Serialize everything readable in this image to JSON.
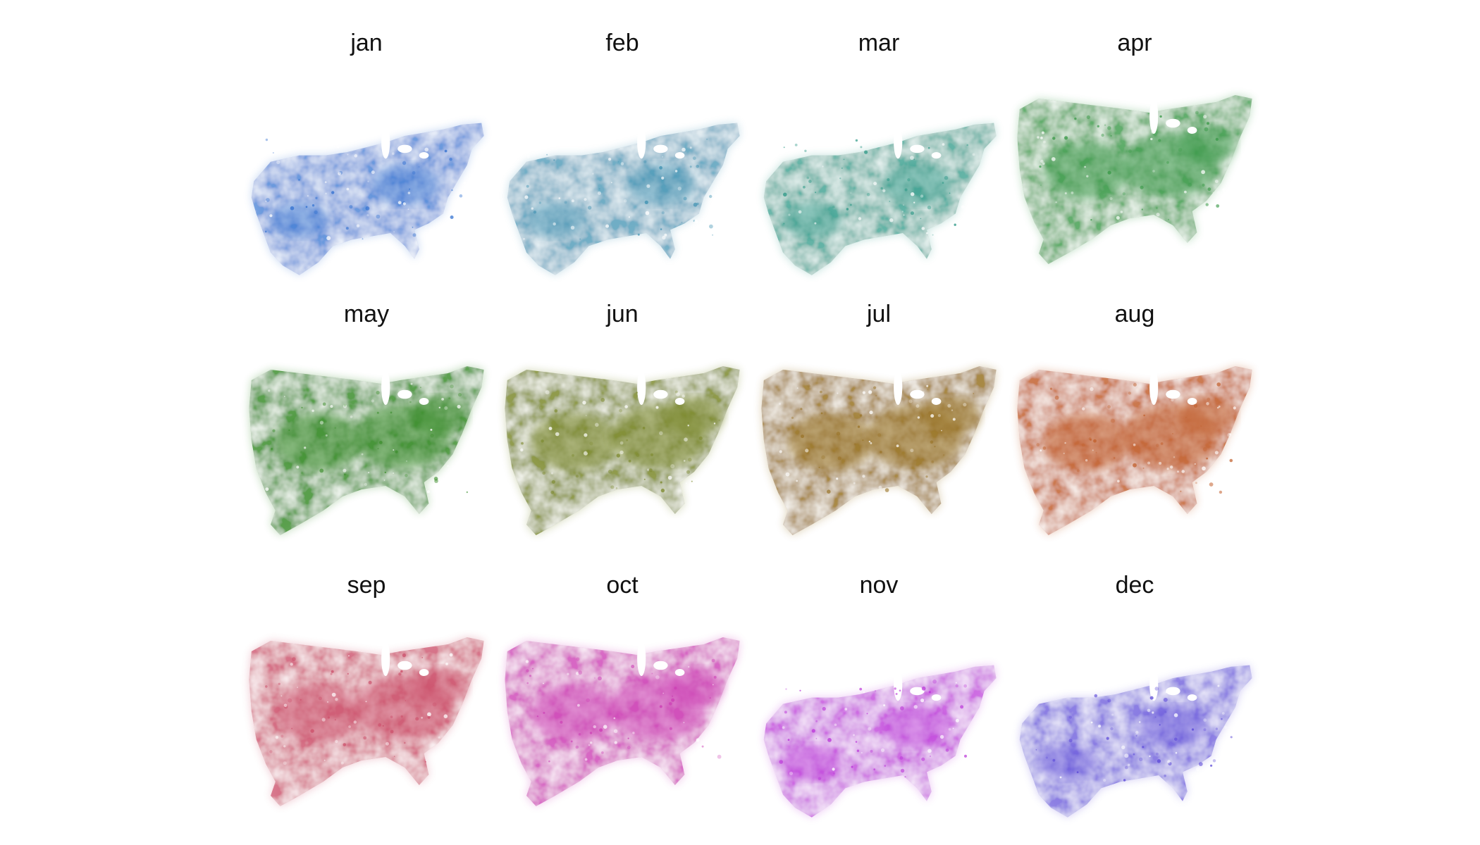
{
  "chart_data": {
    "type": "small-multiples-map",
    "title": "",
    "xlabel": "",
    "ylabel": "",
    "grid": false,
    "legend": "none",
    "layout": {
      "rows": 3,
      "cols": 4
    },
    "panels": [
      {
        "label": "jan",
        "color": "#2f6fd0",
        "extent": "shrunken",
        "intensity": 0.55
      },
      {
        "label": "feb",
        "color": "#3a8fb0",
        "extent": "shrunken",
        "intensity": 0.6
      },
      {
        "label": "mar",
        "color": "#2f9a88",
        "extent": "shrunken",
        "intensity": 0.65
      },
      {
        "label": "apr",
        "color": "#3a9a48",
        "extent": "full",
        "intensity": 0.8
      },
      {
        "label": "may",
        "color": "#3e8f2e",
        "extent": "full",
        "intensity": 0.95
      },
      {
        "label": "jun",
        "color": "#7d8a2e",
        "extent": "full",
        "intensity": 0.95
      },
      {
        "label": "jul",
        "color": "#9a7428",
        "extent": "full",
        "intensity": 0.95
      },
      {
        "label": "aug",
        "color": "#c2612e",
        "extent": "full",
        "intensity": 0.9
      },
      {
        "label": "sep",
        "color": "#cc4f6a",
        "extent": "full",
        "intensity": 0.8
      },
      {
        "label": "oct",
        "color": "#cc3cb4",
        "extent": "full",
        "intensity": 0.75
      },
      {
        "label": "nov",
        "color": "#bb35d8",
        "extent": "shrunken",
        "intensity": 0.6
      },
      {
        "label": "dec",
        "color": "#5b48d8",
        "extent": "shrunken",
        "intensity": 0.55
      }
    ]
  }
}
